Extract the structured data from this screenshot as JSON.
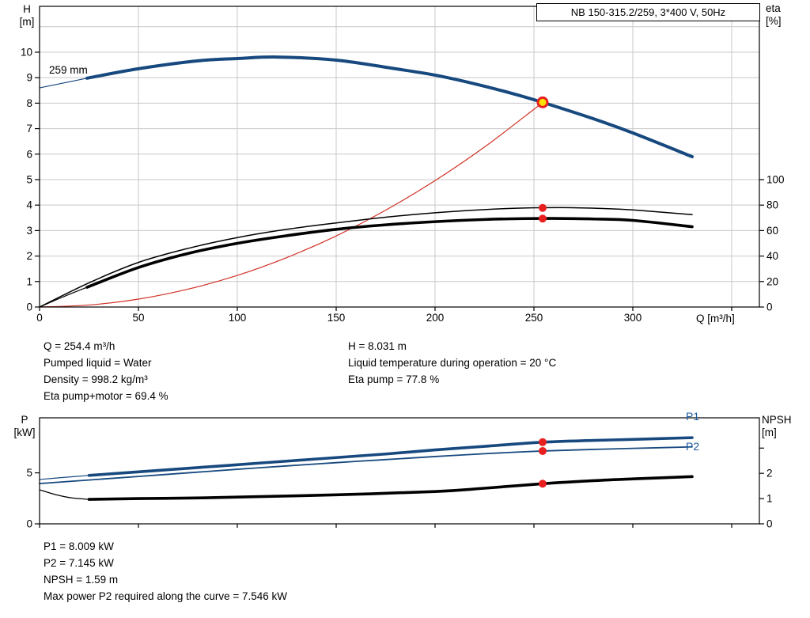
{
  "window": {
    "background": "#ffffff"
  },
  "title_box": {
    "label": "NB 150-315.2/259, 3*400 V, 50Hz"
  },
  "impeller_label": "259 mm",
  "curve_labels": {
    "p1": "P1",
    "p2": "P2"
  },
  "axis_titles": {
    "h": [
      "H",
      "[m]"
    ],
    "eta": [
      "eta",
      "[%]"
    ],
    "q": "Q [m³/h]",
    "p": [
      "P",
      "[kW]"
    ],
    "npsh": [
      "NPSH",
      "[m]"
    ]
  },
  "colors": {
    "curve_blue": "#17497f",
    "curve_black": "#000000",
    "system_red": "#d03126",
    "marker_red": "#e81f1f",
    "marker_yellow": "#ffe100",
    "grid": "#c8c8c8",
    "frame": "#000000",
    "label_blue": "#1d5aa0"
  },
  "info_top": {
    "left": [
      "Q = 254.4 m³/h",
      "Pumped liquid = Water",
      "Density = 998.2 kg/m³",
      "Eta pump+motor = 69.4 %"
    ],
    "right": [
      "H = 8.031 m",
      "Liquid temperature during operation = 20 °C",
      "Eta pump = 77.8 %"
    ]
  },
  "info_bottom": [
    "P1 = 8.009 kW",
    "P2 = 7.145 kW",
    "NPSH = 1.59 m",
    "Max power P2 required along the curve = 7.546 kW"
  ],
  "chart_data": [
    {
      "type": "line",
      "title": "NB 150-315.2/259, 3*400 V, 50Hz",
      "xlabel": "Q [m³/h]",
      "x_axis": {
        "min": 0,
        "max": 364,
        "ticks": [
          {
            "v": 0,
            "label": "0"
          },
          {
            "v": 50,
            "label": "50"
          },
          {
            "v": 100,
            "label": "100"
          },
          {
            "v": 150,
            "label": "150"
          },
          {
            "v": 200,
            "label": "200"
          },
          {
            "v": 250,
            "label": "250"
          },
          {
            "v": 300,
            "label": "300"
          },
          {
            "v": 350,
            "label": ""
          }
        ],
        "grid": [
          50,
          100,
          150,
          200,
          250,
          300,
          350
        ]
      },
      "left_axis": {
        "key": "H",
        "label": "H [m]",
        "min": 0,
        "max": 11.8,
        "ticks": [
          {
            "v": 0,
            "label": "0"
          },
          {
            "v": 1,
            "label": "1"
          },
          {
            "v": 2,
            "label": "2"
          },
          {
            "v": 3,
            "label": "3"
          },
          {
            "v": 4,
            "label": "4"
          },
          {
            "v": 5,
            "label": "5"
          },
          {
            "v": 6,
            "label": "6"
          },
          {
            "v": 7,
            "label": "7"
          },
          {
            "v": 8,
            "label": "8"
          },
          {
            "v": 9,
            "label": "9"
          },
          {
            "v": 10,
            "label": "10"
          }
        ],
        "grid": [
          1,
          2,
          3,
          4,
          5,
          6,
          7,
          8,
          9,
          10,
          11
        ]
      },
      "right_axis": {
        "key": "eta",
        "label": "eta [%]",
        "min": 0,
        "max": 236,
        "ticks": [
          {
            "v": 0,
            "label": "0"
          },
          {
            "v": 20,
            "label": "20"
          },
          {
            "v": 40,
            "label": "40"
          },
          {
            "v": 60,
            "label": "60"
          },
          {
            "v": 80,
            "label": "80"
          },
          {
            "v": 100,
            "label": "100"
          }
        ],
        "grid": []
      },
      "series": [
        {
          "name": "head-259mm",
          "axis": "H",
          "color": "curve_blue",
          "segments": [
            {
              "width": 1.2,
              "points": [
                [
                  0,
                  8.6
                ],
                [
                  12,
                  8.79
                ],
                [
                  24,
                  8.98
                ]
              ]
            },
            {
              "width": 4,
              "points": [
                [
                  24,
                  8.98
                ],
                [
                  50,
                  9.35
                ],
                [
                  80,
                  9.66
                ],
                [
                  100,
                  9.75
                ],
                [
                  120,
                  9.81
                ],
                [
                  150,
                  9.69
                ],
                [
                  180,
                  9.35
                ],
                [
                  200,
                  9.1
                ],
                [
                  220,
                  8.76
                ],
                [
                  240,
                  8.36
                ],
                [
                  254.4,
                  8.031
                ],
                [
                  280,
                  7.39
                ],
                [
                  300,
                  6.83
                ],
                [
                  330,
                  5.9
                ]
              ]
            }
          ]
        },
        {
          "name": "system-curve",
          "axis": "H",
          "color": "system_red",
          "segments": [
            {
              "width": 1.2,
              "points": [
                [
                  0,
                  0
                ],
                [
                  25,
                  0.08
                ],
                [
                  50,
                  0.31
                ],
                [
                  75,
                  0.7
                ],
                [
                  100,
                  1.24
                ],
                [
                  125,
                  1.94
                ],
                [
                  150,
                  2.79
                ],
                [
                  175,
                  3.8
                ],
                [
                  200,
                  4.96
                ],
                [
                  225,
                  6.28
                ],
                [
                  250,
                  7.76
                ],
                [
                  254.4,
                  8.031
                ]
              ]
            }
          ]
        },
        {
          "name": "eta-pump",
          "axis": "eta",
          "color": "curve_black",
          "segments": [
            {
              "width": 1.5,
              "points": [
                [
                  0,
                  0
                ],
                [
                  25,
                  19
                ],
                [
                  50,
                  35
                ],
                [
                  75,
                  46
                ],
                [
                  100,
                  54.5
                ],
                [
                  125,
                  61
                ],
                [
                  150,
                  66
                ],
                [
                  175,
                  70.5
                ],
                [
                  200,
                  74
                ],
                [
                  225,
                  76.5
                ],
                [
                  245,
                  77.7
                ],
                [
                  265,
                  78.0
                ],
                [
                  285,
                  77.3
                ],
                [
                  300,
                  76.2
                ],
                [
                  330,
                  72.5
                ]
              ]
            }
          ]
        },
        {
          "name": "eta-pump-motor",
          "axis": "eta",
          "color": "curve_black",
          "segments": [
            {
              "width": 1.2,
              "points": [
                [
                  0,
                  0
                ],
                [
                  12,
                  8
                ],
                [
                  24,
                  15.5
                ]
              ]
            },
            {
              "width": 3.6,
              "points": [
                [
                  24,
                  15.5
                ],
                [
                  50,
                  31
                ],
                [
                  75,
                  42
                ],
                [
                  100,
                  50
                ],
                [
                  125,
                  56
                ],
                [
                  150,
                  61
                ],
                [
                  175,
                  64.5
                ],
                [
                  200,
                  67
                ],
                [
                  225,
                  68.7
                ],
                [
                  245,
                  69.4
                ],
                [
                  260,
                  69.5
                ],
                [
                  280,
                  69.1
                ],
                [
                  300,
                  68
                ],
                [
                  330,
                  63
                ]
              ]
            }
          ]
        }
      ],
      "duty_point": {
        "Q": 254.4,
        "H": 8.031,
        "eta_pump": 77.8,
        "eta_pump_motor": 69.4
      },
      "markers": [
        {
          "name": "duty-point",
          "Q": 254.4,
          "v": 8.031,
          "axis": "H",
          "style": "duty"
        },
        {
          "name": "eta-pump-point",
          "Q": 254.4,
          "v": 77.8,
          "axis": "eta",
          "style": "dot"
        },
        {
          "name": "eta-pump-motor-point",
          "Q": 254.4,
          "v": 69.4,
          "axis": "eta",
          "style": "dot"
        }
      ]
    },
    {
      "type": "line",
      "title": "Power and NPSH curves",
      "xlabel": "",
      "x_axis": {
        "min": 0,
        "max": 364,
        "ticks": [
          {
            "v": 0,
            "label": ""
          },
          {
            "v": 50,
            "label": ""
          },
          {
            "v": 100,
            "label": ""
          },
          {
            "v": 150,
            "label": ""
          },
          {
            "v": 200,
            "label": ""
          },
          {
            "v": 250,
            "label": ""
          },
          {
            "v": 300,
            "label": ""
          },
          {
            "v": 350,
            "label": ""
          }
        ],
        "grid": []
      },
      "left_axis": {
        "key": "P",
        "label": "P [kW]",
        "min": 0,
        "max": 10.4,
        "ticks": [
          {
            "v": 0,
            "label": "0"
          },
          {
            "v": 5,
            "label": "5"
          }
        ],
        "grid": []
      },
      "right_axis": {
        "key": "NPSH",
        "label": "NPSH [m]",
        "min": 0,
        "max": 4.2,
        "ticks": [
          {
            "v": 0,
            "label": "0"
          },
          {
            "v": 1,
            "label": "1"
          },
          {
            "v": 2,
            "label": "2"
          },
          {
            "v": 3,
            "label": ""
          }
        ],
        "grid": []
      },
      "series": [
        {
          "name": "p1-power",
          "axis": "P",
          "color": "curve_blue",
          "segments": [
            {
              "width": 1.2,
              "points": [
                [
                  0,
                  4.35
                ],
                [
                  12,
                  4.55
                ],
                [
                  25,
                  4.75
                ]
              ]
            },
            {
              "width": 3.6,
              "points": [
                [
                  25,
                  4.75
                ],
                [
                  50,
                  5.1
                ],
                [
                  75,
                  5.45
                ],
                [
                  100,
                  5.8
                ],
                [
                  125,
                  6.15
                ],
                [
                  150,
                  6.5
                ],
                [
                  175,
                  6.85
                ],
                [
                  200,
                  7.25
                ],
                [
                  225,
                  7.6
                ],
                [
                  254.4,
                  8.009
                ],
                [
                  280,
                  8.18
                ],
                [
                  300,
                  8.28
                ],
                [
                  330,
                  8.45
                ]
              ]
            }
          ]
        },
        {
          "name": "p2-power",
          "axis": "P",
          "color": "curve_blue",
          "segments": [
            {
              "width": 1.8,
              "points": [
                [
                  0,
                  3.95
                ],
                [
                  25,
                  4.3
                ],
                [
                  50,
                  4.65
                ],
                [
                  75,
                  5.0
                ],
                [
                  100,
                  5.35
                ],
                [
                  125,
                  5.68
                ],
                [
                  150,
                  6.0
                ],
                [
                  175,
                  6.3
                ],
                [
                  200,
                  6.6
                ],
                [
                  225,
                  6.88
                ],
                [
                  254.4,
                  7.145
                ],
                [
                  280,
                  7.3
                ],
                [
                  300,
                  7.4
                ],
                [
                  330,
                  7.546
                ]
              ]
            }
          ]
        },
        {
          "name": "npsh",
          "axis": "NPSH",
          "color": "curve_black",
          "segments": [
            {
              "width": 1.2,
              "points": [
                [
                  0,
                  1.35
                ],
                [
                  8,
                  1.16
                ],
                [
                  16,
                  1.03
                ],
                [
                  25,
                  0.97
                ]
              ]
            },
            {
              "width": 3.6,
              "points": [
                [
                  25,
                  0.97
                ],
                [
                  50,
                  1.0
                ],
                [
                  75,
                  1.02
                ],
                [
                  100,
                  1.06
                ],
                [
                  150,
                  1.15
                ],
                [
                  200,
                  1.28
                ],
                [
                  225,
                  1.41
                ],
                [
                  254.4,
                  1.59
                ],
                [
                  280,
                  1.71
                ],
                [
                  300,
                  1.78
                ],
                [
                  330,
                  1.87
                ]
              ]
            }
          ]
        }
      ],
      "duty_point": {
        "Q": 254.4,
        "P1": 8.009,
        "P2": 7.145,
        "NPSH": 1.59
      },
      "markers": [
        {
          "name": "p1-point",
          "Q": 254.4,
          "v": 8.009,
          "axis": "P",
          "style": "dot"
        },
        {
          "name": "p2-point",
          "Q": 254.4,
          "v": 7.145,
          "axis": "P",
          "style": "dot"
        },
        {
          "name": "npsh-point",
          "Q": 254.4,
          "v": 1.59,
          "axis": "NPSH",
          "style": "dot"
        }
      ]
    }
  ]
}
